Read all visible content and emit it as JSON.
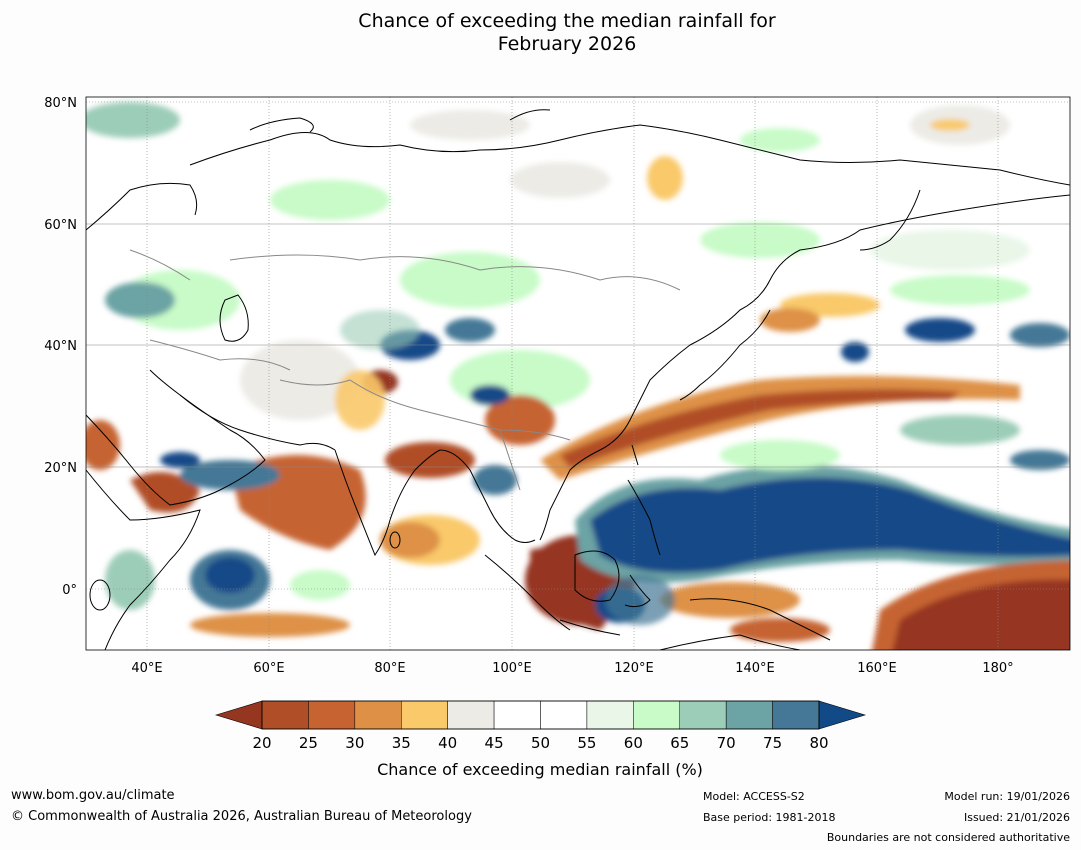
{
  "title": {
    "line1": "Chance of exceeding the median rainfall for",
    "line2": "February 2026"
  },
  "map": {
    "lat_labels": [
      "80°N",
      "60°N",
      "40°N",
      "20°N",
      "0°"
    ],
    "lon_labels": [
      "40°E",
      "60°E",
      "80°E",
      "100°E",
      "120°E",
      "140°E",
      "160°E",
      "180°"
    ],
    "lat_values": [
      80,
      60,
      40,
      20,
      0
    ],
    "lon_values": [
      40,
      60,
      80,
      100,
      120,
      140,
      160,
      180
    ],
    "extent": {
      "lon_min": 30,
      "lon_max": 192,
      "lat_min": -10,
      "lat_max": 81
    }
  },
  "colorbar": {
    "ticks": [
      "20",
      "25",
      "30",
      "35",
      "40",
      "45",
      "50",
      "55",
      "60",
      "65",
      "70",
      "75",
      "80"
    ],
    "colors": [
      "#953620",
      "#b04e27",
      "#c66330",
      "#de9146",
      "#f9c96a",
      "#ecebe6",
      "#ffffff",
      "#ffffff",
      "#e9f6e8",
      "#c8fbc8",
      "#9ccdb8",
      "#6ca3a4",
      "#457896",
      "#124a88"
    ],
    "label": "Chance of exceeding median rainfall (%)"
  },
  "footer": {
    "website": "www.bom.gov.au/climate",
    "copyright": "© Commonwealth of Australia 2026, Australian Bureau of Meteorology",
    "model": "Model: ACCESS-S2",
    "base_period": "Base period: 1981-2018",
    "model_run": "Model run: 19/01/2026",
    "issued": "Issued: 21/01/2026",
    "boundaries_note": "Boundaries are not considered authoritative"
  }
}
